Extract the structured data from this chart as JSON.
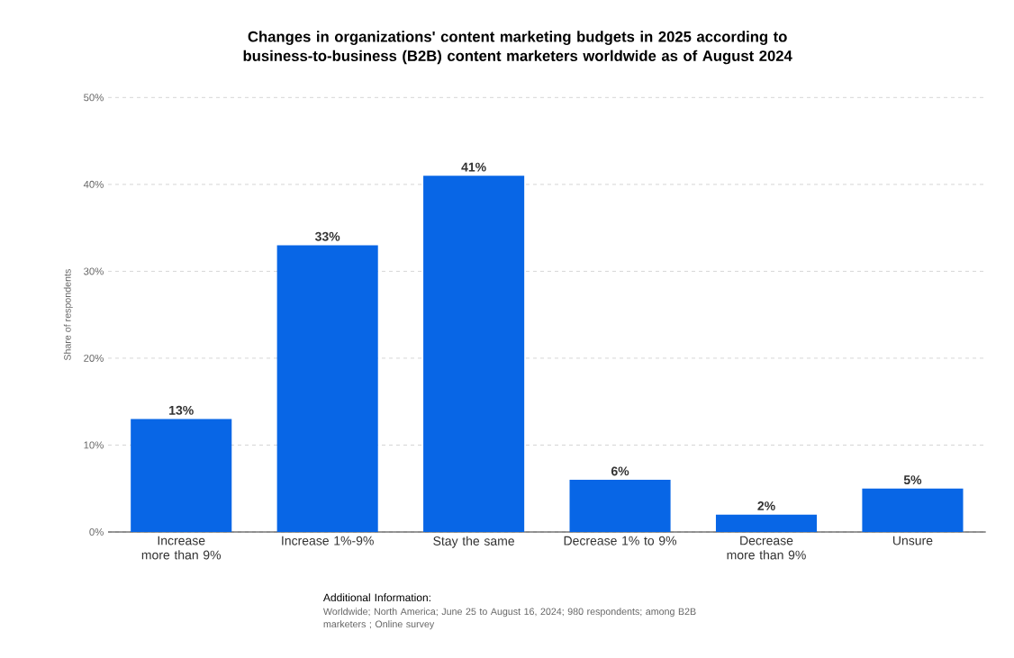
{
  "chart_data": {
    "type": "bar",
    "title": "Changes in organizations' content marketing budgets in 2025 according to business-to-business (B2B) content marketers worldwide as of August 2024",
    "ylabel": "Share of respondents",
    "categories": [
      "Increase more than 9%",
      "Increase 1%-9%",
      "Stay the same",
      "Decrease 1% to 9%",
      "Decrease more than 9%",
      "Unsure"
    ],
    "values": [
      13,
      33,
      41,
      6,
      2,
      5
    ],
    "value_labels": [
      "13%",
      "33%",
      "41%",
      "6%",
      "2%",
      "5%"
    ],
    "color": "#0866e6",
    "ylim": [
      0,
      50
    ],
    "yticks": [
      {
        "value": 0,
        "label": "0%"
      },
      {
        "value": 10,
        "label": "10%"
      },
      {
        "value": 20,
        "label": "20%"
      },
      {
        "value": 30,
        "label": "30%"
      },
      {
        "value": 40,
        "label": "40%"
      },
      {
        "value": 50,
        "label": "50%"
      }
    ],
    "grid": "y",
    "annotations": [
      "Additional Information:",
      "Worldwide; North America; June 25 to August 16, 2024; 980 respondents; among B2B marketers ; Online survey"
    ]
  }
}
